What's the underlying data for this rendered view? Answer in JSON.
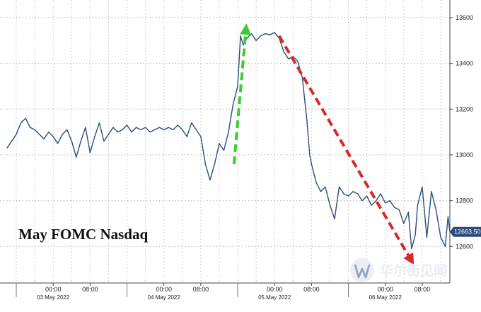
{
  "chart_data": {
    "type": "line",
    "title": "May FOMC Nasdaq",
    "y_axis_side": "right",
    "ylim": [
      12440,
      13640
    ],
    "y_ticks": [
      12600,
      12800,
      13000,
      13200,
      13400,
      13600
    ],
    "y_tick_labels": [
      "12600",
      "12800",
      "13000",
      "13200",
      "13400",
      "13600"
    ],
    "grid": true,
    "x_range": [
      -10,
      86
    ],
    "x_ticks": [
      {
        "x": 0,
        "label": "00:00",
        "day": "03 May 2022"
      },
      {
        "x": 8,
        "label": "08:00",
        "day": ""
      },
      {
        "x": 24,
        "label": "00:00",
        "day": "04 May 2022"
      },
      {
        "x": 32,
        "label": "08:00",
        "day": ""
      },
      {
        "x": 48,
        "label": "00:00",
        "day": "05 May 2022"
      },
      {
        "x": 56,
        "label": "08:00",
        "day": ""
      },
      {
        "x": 72,
        "label": "00:00",
        "day": "06 May 2022"
      },
      {
        "x": 80,
        "label": "08:00",
        "day": ""
      }
    ],
    "last_value_label": "12663.50",
    "series": [
      {
        "color": "#2e4c7a",
        "points": [
          [
            -10,
            13030
          ],
          [
            -9,
            13060
          ],
          [
            -8,
            13090
          ],
          [
            -7,
            13140
          ],
          [
            -6,
            13160
          ],
          [
            -5,
            13120
          ],
          [
            -4,
            13110
          ],
          [
            -3,
            13090
          ],
          [
            -2,
            13070
          ],
          [
            -1,
            13100
          ],
          [
            0,
            13080
          ],
          [
            1,
            13050
          ],
          [
            2,
            13090
          ],
          [
            3,
            13110
          ],
          [
            4,
            13060
          ],
          [
            5,
            12990
          ],
          [
            6,
            13060
          ],
          [
            7,
            13120
          ],
          [
            8,
            13010
          ],
          [
            9,
            13080
          ],
          [
            10,
            13140
          ],
          [
            11,
            13060
          ],
          [
            12,
            13090
          ],
          [
            13,
            13120
          ],
          [
            14,
            13100
          ],
          [
            15,
            13110
          ],
          [
            16,
            13130
          ],
          [
            17,
            13100
          ],
          [
            18,
            13120
          ],
          [
            19,
            13110
          ],
          [
            20,
            13120
          ],
          [
            21,
            13100
          ],
          [
            22,
            13110
          ],
          [
            23,
            13120
          ],
          [
            24,
            13110
          ],
          [
            25,
            13120
          ],
          [
            26,
            13110
          ],
          [
            27,
            13130
          ],
          [
            28,
            13110
          ],
          [
            29,
            13080
          ],
          [
            30,
            13140
          ],
          [
            31,
            13110
          ],
          [
            32,
            13080
          ],
          [
            33,
            12960
          ],
          [
            34,
            12890
          ],
          [
            35,
            12960
          ],
          [
            36,
            13050
          ],
          [
            37,
            13020
          ],
          [
            38,
            13100
          ],
          [
            39,
            13220
          ],
          [
            40,
            13300
          ],
          [
            40.6,
            13520
          ],
          [
            41.2,
            13480
          ],
          [
            42,
            13510
          ],
          [
            43,
            13530
          ],
          [
            44,
            13500
          ],
          [
            45,
            13520
          ],
          [
            46,
            13530
          ],
          [
            47,
            13525
          ],
          [
            48,
            13535
          ],
          [
            49,
            13510
          ],
          [
            50,
            13450
          ],
          [
            51,
            13420
          ],
          [
            52,
            13430
          ],
          [
            53,
            13410
          ],
          [
            54,
            13340
          ],
          [
            55,
            13150
          ],
          [
            55.6,
            13000
          ],
          [
            56,
            12960
          ],
          [
            57,
            12880
          ],
          [
            58,
            12840
          ],
          [
            59,
            12860
          ],
          [
            60,
            12780
          ],
          [
            61,
            12720
          ],
          [
            62,
            12860
          ],
          [
            63,
            12830
          ],
          [
            64,
            12820
          ],
          [
            65,
            12840
          ],
          [
            66,
            12830
          ],
          [
            67,
            12800
          ],
          [
            68,
            12820
          ],
          [
            69,
            12780
          ],
          [
            70,
            12800
          ],
          [
            71,
            12830
          ],
          [
            72,
            12790
          ],
          [
            73,
            12800
          ],
          [
            74,
            12770
          ],
          [
            75,
            12760
          ],
          [
            76,
            12700
          ],
          [
            77,
            12750
          ],
          [
            77.7,
            12590
          ],
          [
            78.5,
            12650
          ],
          [
            79,
            12780
          ],
          [
            80,
            12860
          ],
          [
            81,
            12640
          ],
          [
            82,
            12840
          ],
          [
            83,
            12760
          ],
          [
            84,
            12640
          ],
          [
            85,
            12600
          ],
          [
            85.6,
            12730
          ],
          [
            86,
            12663.5
          ]
        ]
      }
    ],
    "annotations": [
      {
        "type": "dashed-arrow",
        "color": "#3ecb2e",
        "from": [
          39.2,
          12960
        ],
        "to": [
          41.8,
          13550
        ]
      },
      {
        "type": "dashed-arrow",
        "color": "#d62a2a",
        "from": [
          49,
          13520
        ],
        "to": [
          77.6,
          12540
        ]
      }
    ]
  },
  "watermark": {
    "text": "华尔街见闻",
    "icon": "wallstreetcn-logo-icon"
  }
}
